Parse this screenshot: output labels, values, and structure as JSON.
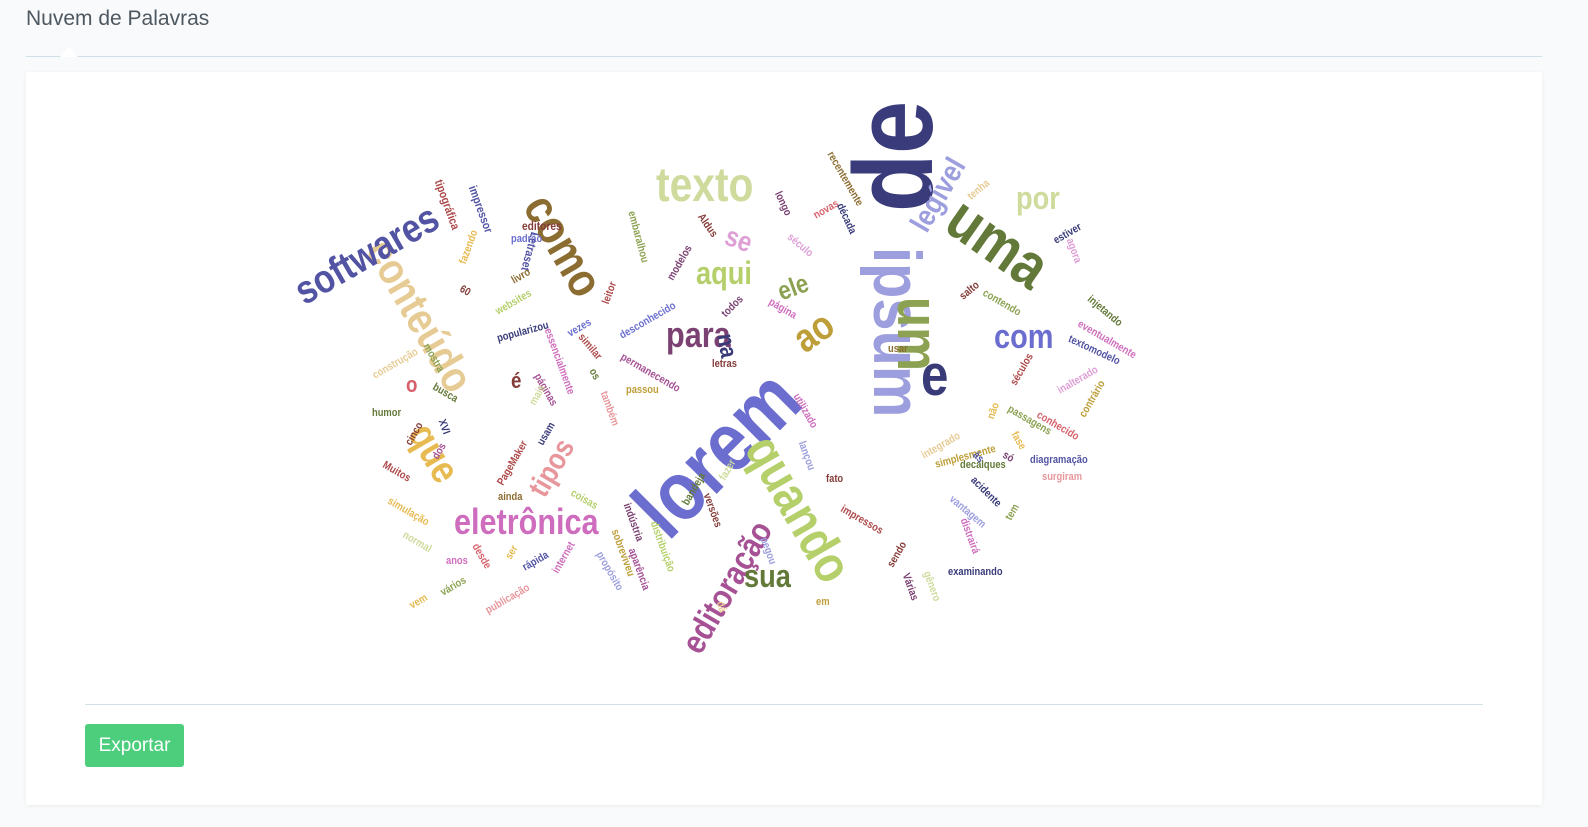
{
  "header": {
    "title": "Nuvem de Palavras"
  },
  "actions": {
    "export_label": "Exportar"
  },
  "word_cloud": {
    "words": [
      {
        "text": "de",
        "color": "#3a3b7a"
      },
      {
        "text": "lorem",
        "color": "#6b6ecf"
      },
      {
        "text": "ipsum",
        "color": "#9c9ede"
      },
      {
        "text": "uma",
        "color": "#637939"
      },
      {
        "text": "um",
        "color": "#8ca252"
      },
      {
        "text": "e",
        "color": "#393b79"
      },
      {
        "text": "quando",
        "color": "#b5cf6b"
      },
      {
        "text": "texto",
        "color": "#cedb9c"
      },
      {
        "text": "como",
        "color": "#8c6d31"
      },
      {
        "text": "conteúdo",
        "color": "#e7cb94"
      },
      {
        "text": "softwares",
        "color": "#5254a3"
      },
      {
        "text": "eletrônica",
        "color": "#ce6dbd"
      },
      {
        "text": "editoração",
        "color": "#a55194"
      },
      {
        "text": "que",
        "color": "#e7ba52"
      },
      {
        "text": "ao",
        "color": "#bd9e39"
      },
      {
        "text": "para",
        "color": "#7b4173"
      },
      {
        "text": "com",
        "color": "#6b6ecf"
      },
      {
        "text": "sua",
        "color": "#637939"
      },
      {
        "text": "aqui",
        "color": "#b5cf6b"
      },
      {
        "text": "legível",
        "color": "#9c9ede"
      },
      {
        "text": "por",
        "color": "#cedb9c"
      },
      {
        "text": "tipos",
        "color": "#e7969c"
      },
      {
        "text": "se",
        "color": "#de9ed6"
      },
      {
        "text": "ele",
        "color": "#8ca252"
      },
      {
        "text": "na",
        "color": "#393b79"
      },
      {
        "text": "é",
        "color": "#843c39"
      },
      {
        "text": "o",
        "color": "#d6616b"
      },
      {
        "text": "tipográfica",
        "color": "#ad494a"
      },
      {
        "text": "impressor",
        "color": "#5254a3"
      },
      {
        "text": "editores",
        "color": "#843c39"
      },
      {
        "text": "padrão",
        "color": "#6b6ecf"
      },
      {
        "text": "Letraset",
        "color": "#5254a3"
      },
      {
        "text": "embaralhou",
        "color": "#8ca252"
      },
      {
        "text": "Aldus",
        "color": "#843c39"
      },
      {
        "text": "longo",
        "color": "#7b4173"
      },
      {
        "text": "recentemente",
        "color": "#8c6d31"
      },
      {
        "text": "novas",
        "color": "#d6616b"
      },
      {
        "text": "década",
        "color": "#393b79"
      },
      {
        "text": "tenha",
        "color": "#e7cb94"
      },
      {
        "text": "fazendo",
        "color": "#e7ba52"
      },
      {
        "text": "livro",
        "color": "#8c6d31"
      },
      {
        "text": "modelos",
        "color": "#7b4173"
      },
      {
        "text": "século",
        "color": "#de9ed6"
      },
      {
        "text": "estiver",
        "color": "#393b79"
      },
      {
        "text": "agora",
        "color": "#de9ed6"
      },
      {
        "text": "60",
        "color": "#843c39"
      },
      {
        "text": "websites",
        "color": "#b5cf6b"
      },
      {
        "text": "leitor",
        "color": "#ad494a"
      },
      {
        "text": "desconhecido",
        "color": "#6b6ecf"
      },
      {
        "text": "todos",
        "color": "#7b4173"
      },
      {
        "text": "página",
        "color": "#ce6dbd"
      },
      {
        "text": "salto",
        "color": "#843c39"
      },
      {
        "text": "contendo",
        "color": "#8ca252"
      },
      {
        "text": "injetando",
        "color": "#637939"
      },
      {
        "text": "popularizou",
        "color": "#393b79"
      },
      {
        "text": "vezes",
        "color": "#6b6ecf"
      },
      {
        "text": "eventualmente",
        "color": "#ce6dbd"
      },
      {
        "text": "textomodelo",
        "color": "#5254a3"
      },
      {
        "text": "construção",
        "color": "#e7cb94"
      },
      {
        "text": "mostra",
        "color": "#8ca252"
      },
      {
        "text": "essencialmente",
        "color": "#ce6dbd"
      },
      {
        "text": "similar",
        "color": "#ad494a"
      },
      {
        "text": "permanecendo",
        "color": "#a55194"
      },
      {
        "text": "usar",
        "color": "#8c6d31"
      },
      {
        "text": "letras",
        "color": "#843c39"
      },
      {
        "text": "séculos",
        "color": "#ad494a"
      },
      {
        "text": "inalterado",
        "color": "#de9ed6"
      },
      {
        "text": "contrário",
        "color": "#bd9e39"
      },
      {
        "text": "busca",
        "color": "#637939"
      },
      {
        "text": "os",
        "color": "#637939"
      },
      {
        "text": "páginas",
        "color": "#a55194"
      },
      {
        "text": "passou",
        "color": "#bd9e39"
      },
      {
        "text": "também",
        "color": "#e7969c"
      },
      {
        "text": "utilizado",
        "color": "#ce6dbd"
      },
      {
        "text": "não",
        "color": "#e7ba52"
      },
      {
        "text": "passagens",
        "color": "#8ca252"
      },
      {
        "text": "conhecido",
        "color": "#d6616b"
      },
      {
        "text": "humor",
        "color": "#637939"
      },
      {
        "text": "mais",
        "color": "#cedb9c"
      },
      {
        "text": "XVI",
        "color": "#393b79"
      },
      {
        "text": "cinco",
        "color": "#843c39"
      },
      {
        "text": "usam",
        "color": "#393b79"
      },
      {
        "text": "integrado",
        "color": "#e7cb94"
      },
      {
        "text": "simplesmente",
        "color": "#bd9e39"
      },
      {
        "text": "só",
        "color": "#7b4173"
      },
      {
        "text": "fase",
        "color": "#e7ba52"
      },
      {
        "text": "dos",
        "color": "#a55194"
      },
      {
        "text": "lançou",
        "color": "#9c9ede"
      },
      {
        "text": "às",
        "color": "#5254a3"
      },
      {
        "text": "diagramação",
        "color": "#5254a3"
      },
      {
        "text": "PageMaker",
        "color": "#ad494a"
      },
      {
        "text": "Muitos",
        "color": "#ad494a"
      },
      {
        "text": "fazer",
        "color": "#cedb9c"
      },
      {
        "text": "decalques",
        "color": "#637939"
      },
      {
        "text": "fato",
        "color": "#843c39"
      },
      {
        "text": "surgiram",
        "color": "#e7969c"
      },
      {
        "text": "ainda",
        "color": "#8c6d31"
      },
      {
        "text": "bandeja",
        "color": "#637939"
      },
      {
        "text": "versões",
        "color": "#843c39"
      },
      {
        "text": "acidente",
        "color": "#393b79"
      },
      {
        "text": "coisas",
        "color": "#b5cf6b"
      },
      {
        "text": "simulação",
        "color": "#e7ba52"
      },
      {
        "text": "indústria",
        "color": "#7b4173"
      },
      {
        "text": "distribuição",
        "color": "#b5cf6b"
      },
      {
        "text": "impressos",
        "color": "#ad494a"
      },
      {
        "text": "vantagem",
        "color": "#9c9ede"
      },
      {
        "text": "tem",
        "color": "#8ca252"
      },
      {
        "text": "normal",
        "color": "#cedb9c"
      },
      {
        "text": "desde",
        "color": "#d6616b"
      },
      {
        "text": "ser",
        "color": "#e7ba52"
      },
      {
        "text": "internet",
        "color": "#ce6dbd"
      },
      {
        "text": "aparência",
        "color": "#a55194"
      },
      {
        "text": "pegou",
        "color": "#9c9ede"
      },
      {
        "text": "distrairá",
        "color": "#ce6dbd"
      },
      {
        "text": "anos",
        "color": "#ce6dbd"
      },
      {
        "text": "rápida",
        "color": "#5254a3"
      },
      {
        "text": "propósito",
        "color": "#9c9ede"
      },
      {
        "text": "sobreviveu",
        "color": "#bd9e39"
      },
      {
        "text": "sendo",
        "color": "#843c39"
      },
      {
        "text": "examinando",
        "color": "#393b79"
      },
      {
        "text": "vários",
        "color": "#8ca252"
      },
      {
        "text": "vem",
        "color": "#e7ba52"
      },
      {
        "text": "publicação",
        "color": "#e7969c"
      },
      {
        "text": "dá",
        "color": "#e7cb94"
      },
      {
        "text": "em",
        "color": "#bd9e39"
      },
      {
        "text": "Várias",
        "color": "#7b4173"
      },
      {
        "text": "gênero",
        "color": "#cedb9c"
      }
    ]
  }
}
